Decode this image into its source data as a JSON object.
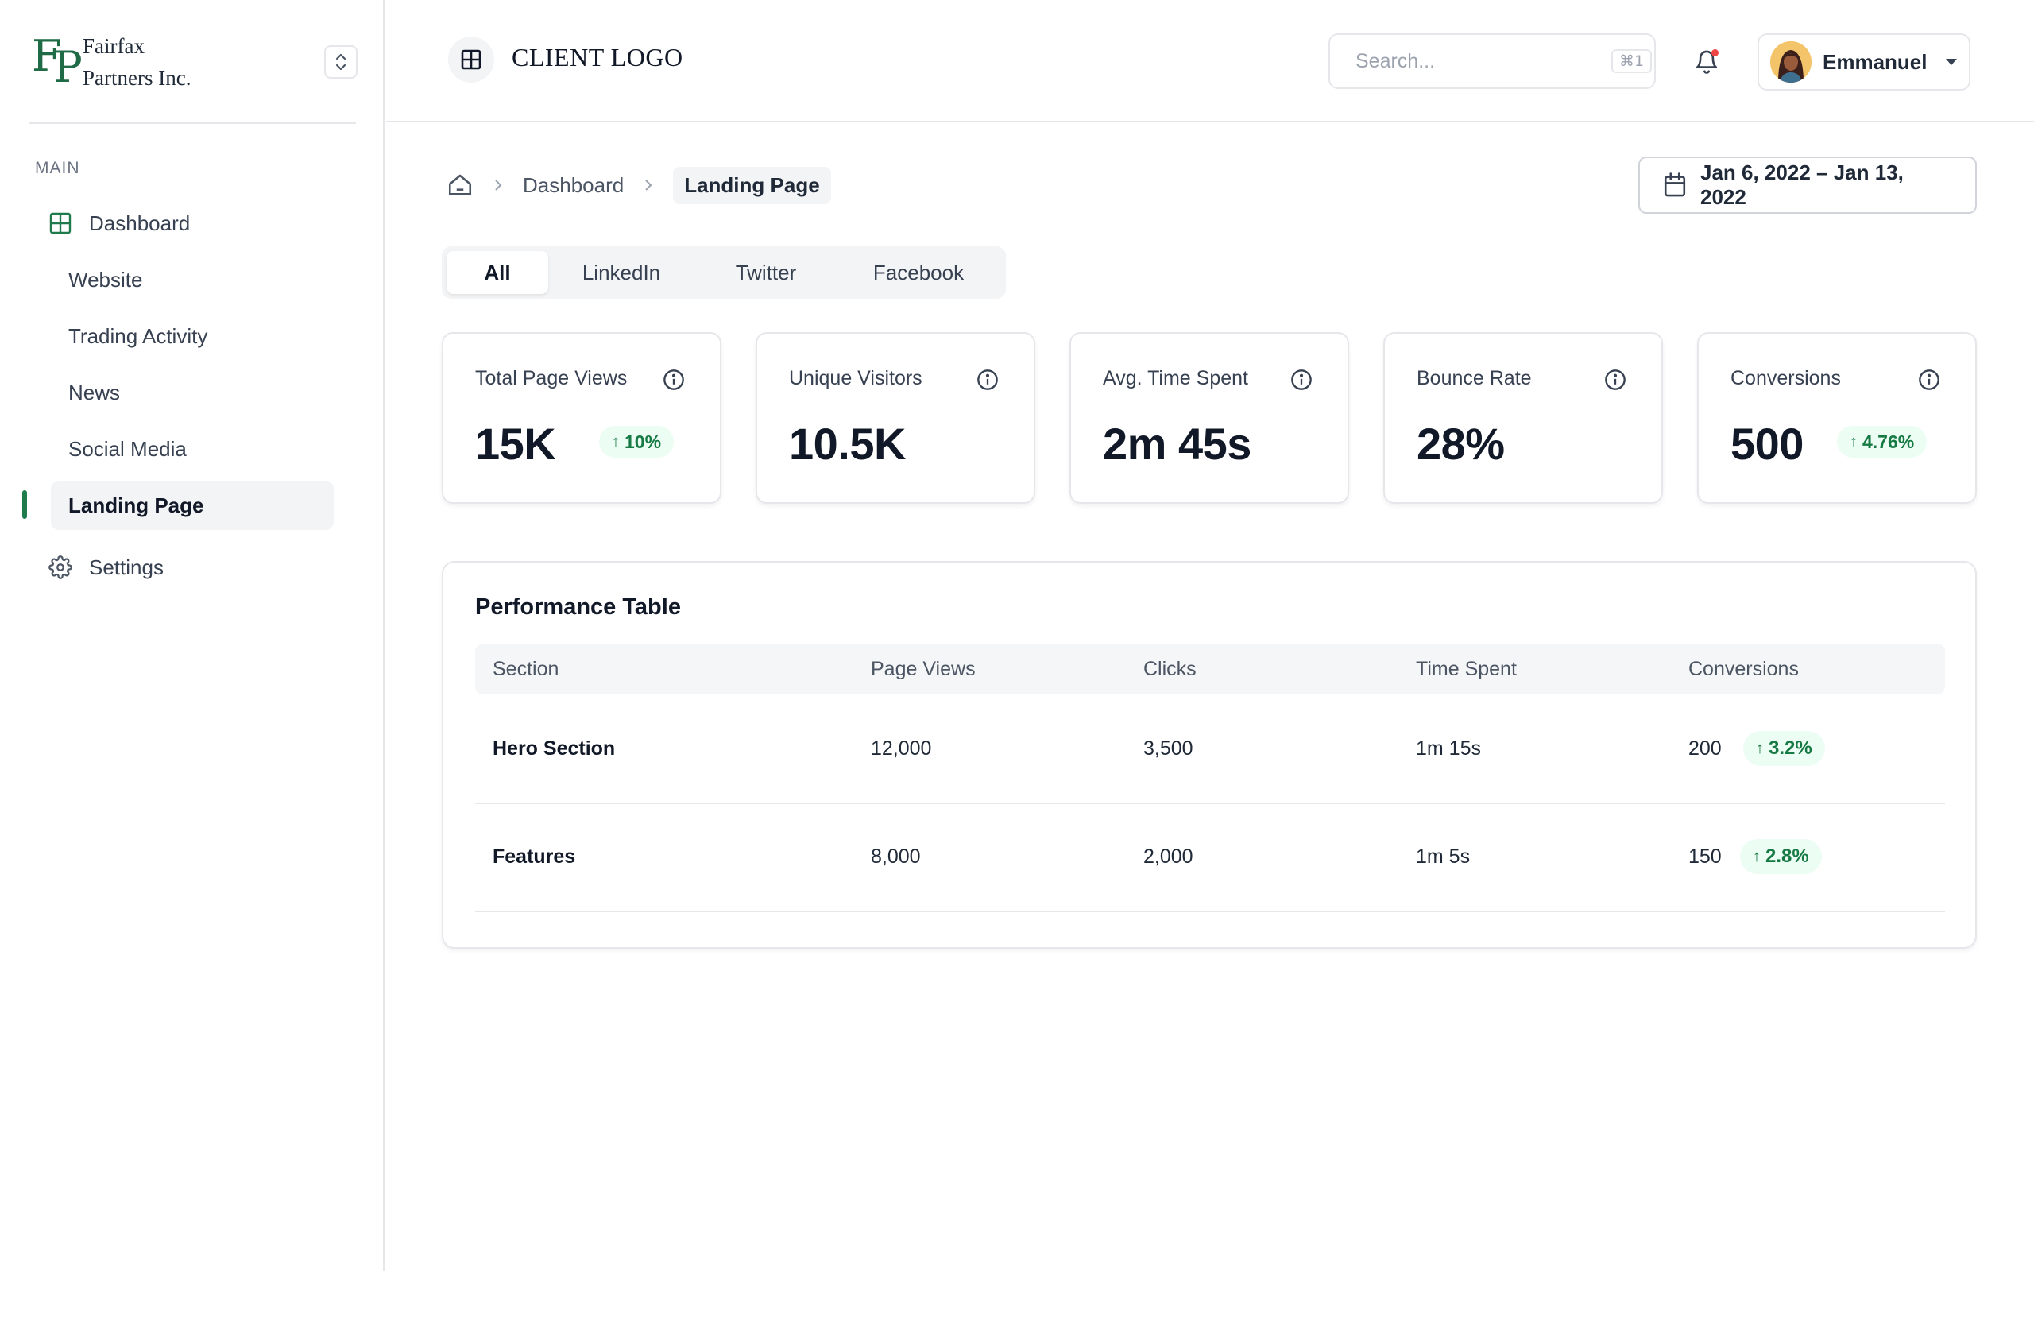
{
  "brand": {
    "mark_f": "F",
    "mark_p": "P",
    "name_line1": "Fairfax",
    "name_line2": "Partners Inc."
  },
  "sidebar": {
    "section_label": "MAIN",
    "items": [
      {
        "label": "Dashboard",
        "icon": "grid-icon"
      },
      {
        "label": "Website"
      },
      {
        "label": "Trading Activity"
      },
      {
        "label": "News"
      },
      {
        "label": "Social Media"
      },
      {
        "label": "Landing Page",
        "active": true
      },
      {
        "label": "Settings",
        "icon": "gear-icon"
      }
    ]
  },
  "header": {
    "client_logo": "CLIENT LOGO",
    "search": {
      "placeholder": "Search...",
      "shortcut": "⌘1"
    },
    "user": {
      "name": "Emmanuel"
    }
  },
  "breadcrumb": {
    "items": [
      "Dashboard",
      "Landing Page"
    ]
  },
  "date_range": "Jan 6, 2022 – Jan 13, 2022",
  "tabs": [
    {
      "label": "All",
      "active": true
    },
    {
      "label": "LinkedIn"
    },
    {
      "label": "Twitter"
    },
    {
      "label": "Facebook"
    }
  ],
  "metrics": [
    {
      "title": "Total Page Views",
      "value": "15K",
      "change": "10%"
    },
    {
      "title": "Unique Visitors",
      "value": "10.5K"
    },
    {
      "title": "Avg. Time Spent",
      "value": "2m 45s"
    },
    {
      "title": "Bounce Rate",
      "value": "28%"
    },
    {
      "title": "Conversions",
      "value": "500",
      "change": "4.76%"
    }
  ],
  "performance_table": {
    "title": "Performance Table",
    "columns": [
      "Section",
      "Page Views",
      "Clicks",
      "Time Spent",
      "Conversions"
    ],
    "rows": [
      {
        "section": "Hero Section",
        "page_views": "12,000",
        "clicks": "3,500",
        "time_spent": "1m 15s",
        "conversions": "200",
        "change": "3.2%"
      },
      {
        "section": "Features",
        "page_views": "8,000",
        "clicks": "2,000",
        "time_spent": "1m 5s",
        "conversions": "150",
        "change": "2.8%"
      }
    ]
  },
  "colors": {
    "accent": "#1f7a4c",
    "positive_bg": "#ecfdf3",
    "positive_text": "#177a44",
    "notification_dot": "#ef4444"
  }
}
